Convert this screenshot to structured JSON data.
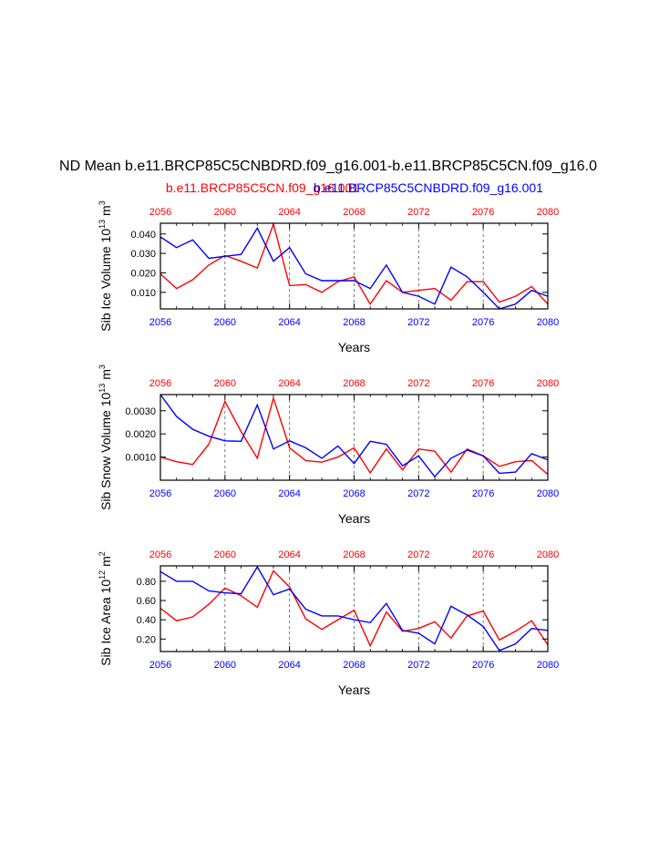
{
  "title": "ND Mean b.e11.BRCP85C5CNBDRD.f09_g16.001-b.e11.BRCP85C5CN.f09_g16.0",
  "legend": {
    "red_name": "b.e11.BRCP85C5CN.f09_g16.001",
    "blue_name": "b.e11.BRCP85C5CNBDRD.f09_g16.001"
  },
  "colors": {
    "red": "#ff0000",
    "blue": "#0000ff",
    "axis": "#000000",
    "grid": "#555555"
  },
  "chart_data": [
    {
      "type": "line",
      "ylabel": "Sib Ice Volume 10",
      "ylabel_exp": "13",
      "ylabel_unit": " m",
      "ylabel_unit_exp": "3",
      "xlabel": "Years",
      "xlim": [
        2056,
        2080
      ],
      "ylim": [
        0.0015,
        0.0455
      ],
      "xticks": [
        2056,
        2060,
        2064,
        2068,
        2072,
        2076,
        2080
      ],
      "yticks": [
        0.01,
        0.02,
        0.03,
        0.04
      ],
      "ytick_labels": [
        "0.010",
        "0.020",
        "0.030",
        "0.040"
      ],
      "years": [
        2056,
        2057,
        2058,
        2059,
        2060,
        2061,
        2062,
        2063,
        2064,
        2065,
        2066,
        2067,
        2068,
        2069,
        2070,
        2071,
        2072,
        2073,
        2074,
        2075,
        2076,
        2077,
        2078,
        2079,
        2080
      ],
      "series": [
        {
          "name": "b.e11.BRCP85C5CN.f09_g16.001",
          "color": "red",
          "values": [
            0.0195,
            0.012,
            0.0165,
            0.024,
            0.029,
            0.026,
            0.0225,
            0.045,
            0.0135,
            0.014,
            0.01,
            0.0155,
            0.018,
            0.004,
            0.016,
            0.01,
            0.011,
            0.012,
            0.006,
            0.0155,
            0.0155,
            0.005,
            0.008,
            0.013,
            0.004
          ]
        },
        {
          "name": "b.e11.BRCP85C5CNBDRD.f09_g16.001",
          "color": "blue",
          "values": [
            0.0385,
            0.033,
            0.037,
            0.0275,
            0.0285,
            0.0295,
            0.043,
            0.026,
            0.033,
            0.0195,
            0.016,
            0.016,
            0.016,
            0.012,
            0.024,
            0.01,
            0.008,
            0.004,
            0.023,
            0.018,
            0.01,
            0.0015,
            0.004,
            0.011,
            0.008
          ]
        }
      ]
    },
    {
      "type": "line",
      "ylabel": "Sib Snow Volume 10",
      "ylabel_exp": "13",
      "ylabel_unit": " m",
      "ylabel_unit_exp": "3",
      "xlabel": "Years",
      "xlim": [
        2056,
        2080
      ],
      "ylim": [
        0.0,
        0.0037
      ],
      "xticks": [
        2056,
        2060,
        2064,
        2068,
        2072,
        2076,
        2080
      ],
      "yticks": [
        0.001,
        0.002,
        0.003
      ],
      "ytick_labels": [
        "0.0010",
        "0.0020",
        "0.0030"
      ],
      "years": [
        2056,
        2057,
        2058,
        2059,
        2060,
        2061,
        2062,
        2063,
        2064,
        2065,
        2066,
        2067,
        2068,
        2069,
        2070,
        2071,
        2072,
        2073,
        2074,
        2075,
        2076,
        2077,
        2078,
        2079,
        2080
      ],
      "series": [
        {
          "name": "b.e11.BRCP85C5CN.f09_g16.001",
          "color": "red",
          "values": [
            0.001,
            0.0008,
            0.00068,
            0.00155,
            0.0034,
            0.0021,
            0.00095,
            0.00355,
            0.0014,
            0.00085,
            0.00078,
            0.001,
            0.0014,
            0.00032,
            0.00135,
            0.00045,
            0.00135,
            0.00125,
            0.00035,
            0.00135,
            0.00105,
            0.0006,
            0.0008,
            0.00085,
            0.00025
          ]
        },
        {
          "name": "b.e11.BRCP85C5CNBDRD.f09_g16.001",
          "color": "blue",
          "values": [
            0.0037,
            0.00275,
            0.0022,
            0.0019,
            0.0017,
            0.00168,
            0.00325,
            0.00135,
            0.0017,
            0.0014,
            0.00095,
            0.00148,
            0.00072,
            0.00168,
            0.00155,
            0.00062,
            0.00105,
            0.00015,
            0.00095,
            0.0013,
            0.00105,
            0.0003,
            0.00035,
            0.00115,
            0.00088
          ]
        }
      ]
    },
    {
      "type": "line",
      "ylabel": "Sib Ice Area 10",
      "ylabel_exp": "12",
      "ylabel_unit": " m",
      "ylabel_unit_exp": "2",
      "xlabel": "Years",
      "xlim": [
        2056,
        2080
      ],
      "ylim": [
        0.07,
        0.96
      ],
      "xticks": [
        2056,
        2060,
        2064,
        2068,
        2072,
        2076,
        2080
      ],
      "yticks": [
        0.2,
        0.4,
        0.6,
        0.8
      ],
      "ytick_labels": [
        "0.20",
        "0.40",
        "0.60",
        "0.80"
      ],
      "years": [
        2056,
        2057,
        2058,
        2059,
        2060,
        2061,
        2062,
        2063,
        2064,
        2065,
        2066,
        2067,
        2068,
        2069,
        2070,
        2071,
        2072,
        2073,
        2074,
        2075,
        2076,
        2077,
        2078,
        2079,
        2080
      ],
      "series": [
        {
          "name": "b.e11.BRCP85C5CN.f09_g16.001",
          "color": "red",
          "values": [
            0.52,
            0.39,
            0.43,
            0.56,
            0.73,
            0.65,
            0.53,
            0.91,
            0.74,
            0.41,
            0.3,
            0.4,
            0.5,
            0.13,
            0.48,
            0.28,
            0.31,
            0.38,
            0.21,
            0.44,
            0.49,
            0.19,
            0.28,
            0.39,
            0.14
          ]
        },
        {
          "name": "b.e11.BRCP85C5CNBDRD.f09_g16.001",
          "color": "blue",
          "values": [
            0.9,
            0.8,
            0.8,
            0.7,
            0.68,
            0.67,
            0.95,
            0.66,
            0.72,
            0.51,
            0.44,
            0.44,
            0.4,
            0.37,
            0.57,
            0.29,
            0.26,
            0.15,
            0.54,
            0.45,
            0.33,
            0.08,
            0.15,
            0.31,
            0.29
          ]
        }
      ]
    }
  ]
}
